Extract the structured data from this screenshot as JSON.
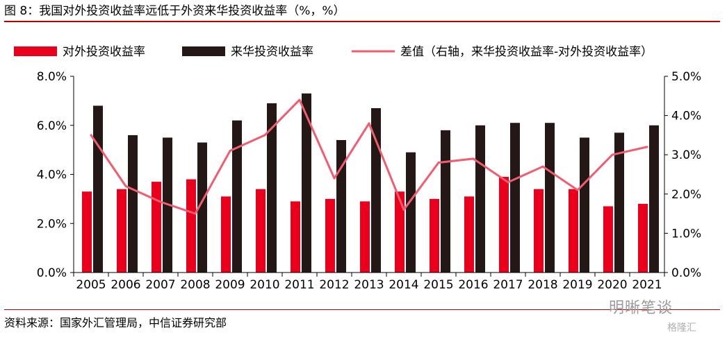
{
  "title": "图 8：我国对外投资收益率远低于外资来华投资收益率（%，%）",
  "source": "资料来源：国家外汇管理局，中信证券研究部",
  "watermark": "明晰笔谈",
  "watermark2": "格隆汇",
  "colors": {
    "outward": "#e8001c",
    "inward": "#231815",
    "diff": "#f25c6e",
    "rule": "#c00000"
  },
  "chart_data": {
    "type": "bar",
    "categories": [
      "2005",
      "2006",
      "2007",
      "2008",
      "2009",
      "2010",
      "2011",
      "2012",
      "2013",
      "2014",
      "2015",
      "2016",
      "2017",
      "2018",
      "2019",
      "2020",
      "2021"
    ],
    "series": [
      {
        "name": "对外投资收益率",
        "kind": "bar",
        "axis": "left",
        "values": [
          3.3,
          3.4,
          3.7,
          3.8,
          3.1,
          3.4,
          2.9,
          3.0,
          2.9,
          3.3,
          3.0,
          3.1,
          3.9,
          3.4,
          3.4,
          2.7,
          2.8
        ]
      },
      {
        "name": "来华投资收益率",
        "kind": "bar",
        "axis": "left",
        "values": [
          6.8,
          5.6,
          5.5,
          5.3,
          6.2,
          6.9,
          7.3,
          5.4,
          6.7,
          4.9,
          5.8,
          6.0,
          6.1,
          6.1,
          5.5,
          5.7,
          6.0
        ]
      },
      {
        "name": "差值（右轴，来华投资收益率-对外投资收益率）",
        "kind": "line",
        "axis": "right",
        "values": [
          3.5,
          2.2,
          1.8,
          1.5,
          3.1,
          3.5,
          4.4,
          2.4,
          3.8,
          1.6,
          2.8,
          2.9,
          2.3,
          2.7,
          2.1,
          3.0,
          3.2
        ]
      }
    ],
    "y_left": {
      "min": 0,
      "max": 8,
      "ticks": [
        "0.0%",
        "2.0%",
        "4.0%",
        "6.0%",
        "8.0%"
      ]
    },
    "y_right": {
      "min": 0,
      "max": 5,
      "ticks": [
        "0.0%",
        "1.0%",
        "2.0%",
        "3.0%",
        "4.0%",
        "5.0%"
      ]
    },
    "legend_position": "top",
    "grid": false
  }
}
